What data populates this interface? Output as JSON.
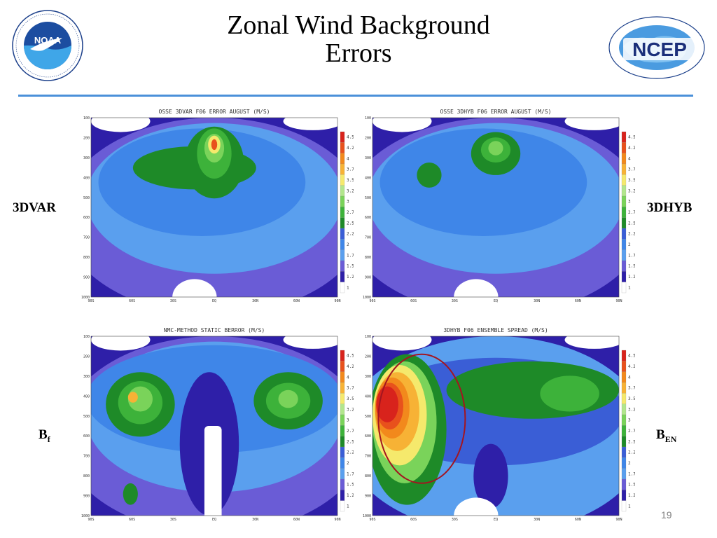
{
  "slide": {
    "title_line1": "Zonal Wind Background",
    "title_line2": "Errors",
    "page_number": "19",
    "noaa_logo_text": "NOAA",
    "ncep_logo_text": "NCEP"
  },
  "labels": {
    "top_left": "3DVAR",
    "top_right": "3DHYB",
    "bottom_left_main": "B",
    "bottom_left_sub": "f",
    "bottom_right_main": "B",
    "bottom_right_sub": "EN"
  },
  "colorbar": {
    "levels": [
      "4.5",
      "4.25",
      "4",
      "3.75",
      "3.5",
      "3.25",
      "3",
      "2.75",
      "2.5",
      "2.25",
      "2",
      "1.75",
      "1.5",
      "1.25",
      "1"
    ],
    "colors": [
      "#d8231c",
      "#e8511c",
      "#f2891c",
      "#f7b235",
      "#f5e96c",
      "#b2e68c",
      "#7ad35a",
      "#3db23a",
      "#1e8a28",
      "#3a5ed6",
      "#3f86e8",
      "#5a9fee",
      "#6a5cd6",
      "#2e1fa8",
      "#ffffff"
    ]
  },
  "panels": [
    {
      "title": "OSSE 3DVAR F06 ERROR AUGUST (M/S)"
    },
    {
      "title": "OSSE 3DHYB F06 ERROR AUGUST (M/S)"
    },
    {
      "title": "NMC-METHOD STATIC BERROR (M/S)"
    },
    {
      "title": "3DHYB F06 ENSEMBLE SPREAD (M/S)"
    }
  ],
  "axes": {
    "y_ticks": [
      "100",
      "200",
      "300",
      "400",
      "500",
      "600",
      "700",
      "800",
      "900",
      "1000"
    ],
    "x_ticks": [
      "90S",
      "60S",
      "30S",
      "EQ",
      "30N",
      "60N",
      "90N"
    ]
  }
}
